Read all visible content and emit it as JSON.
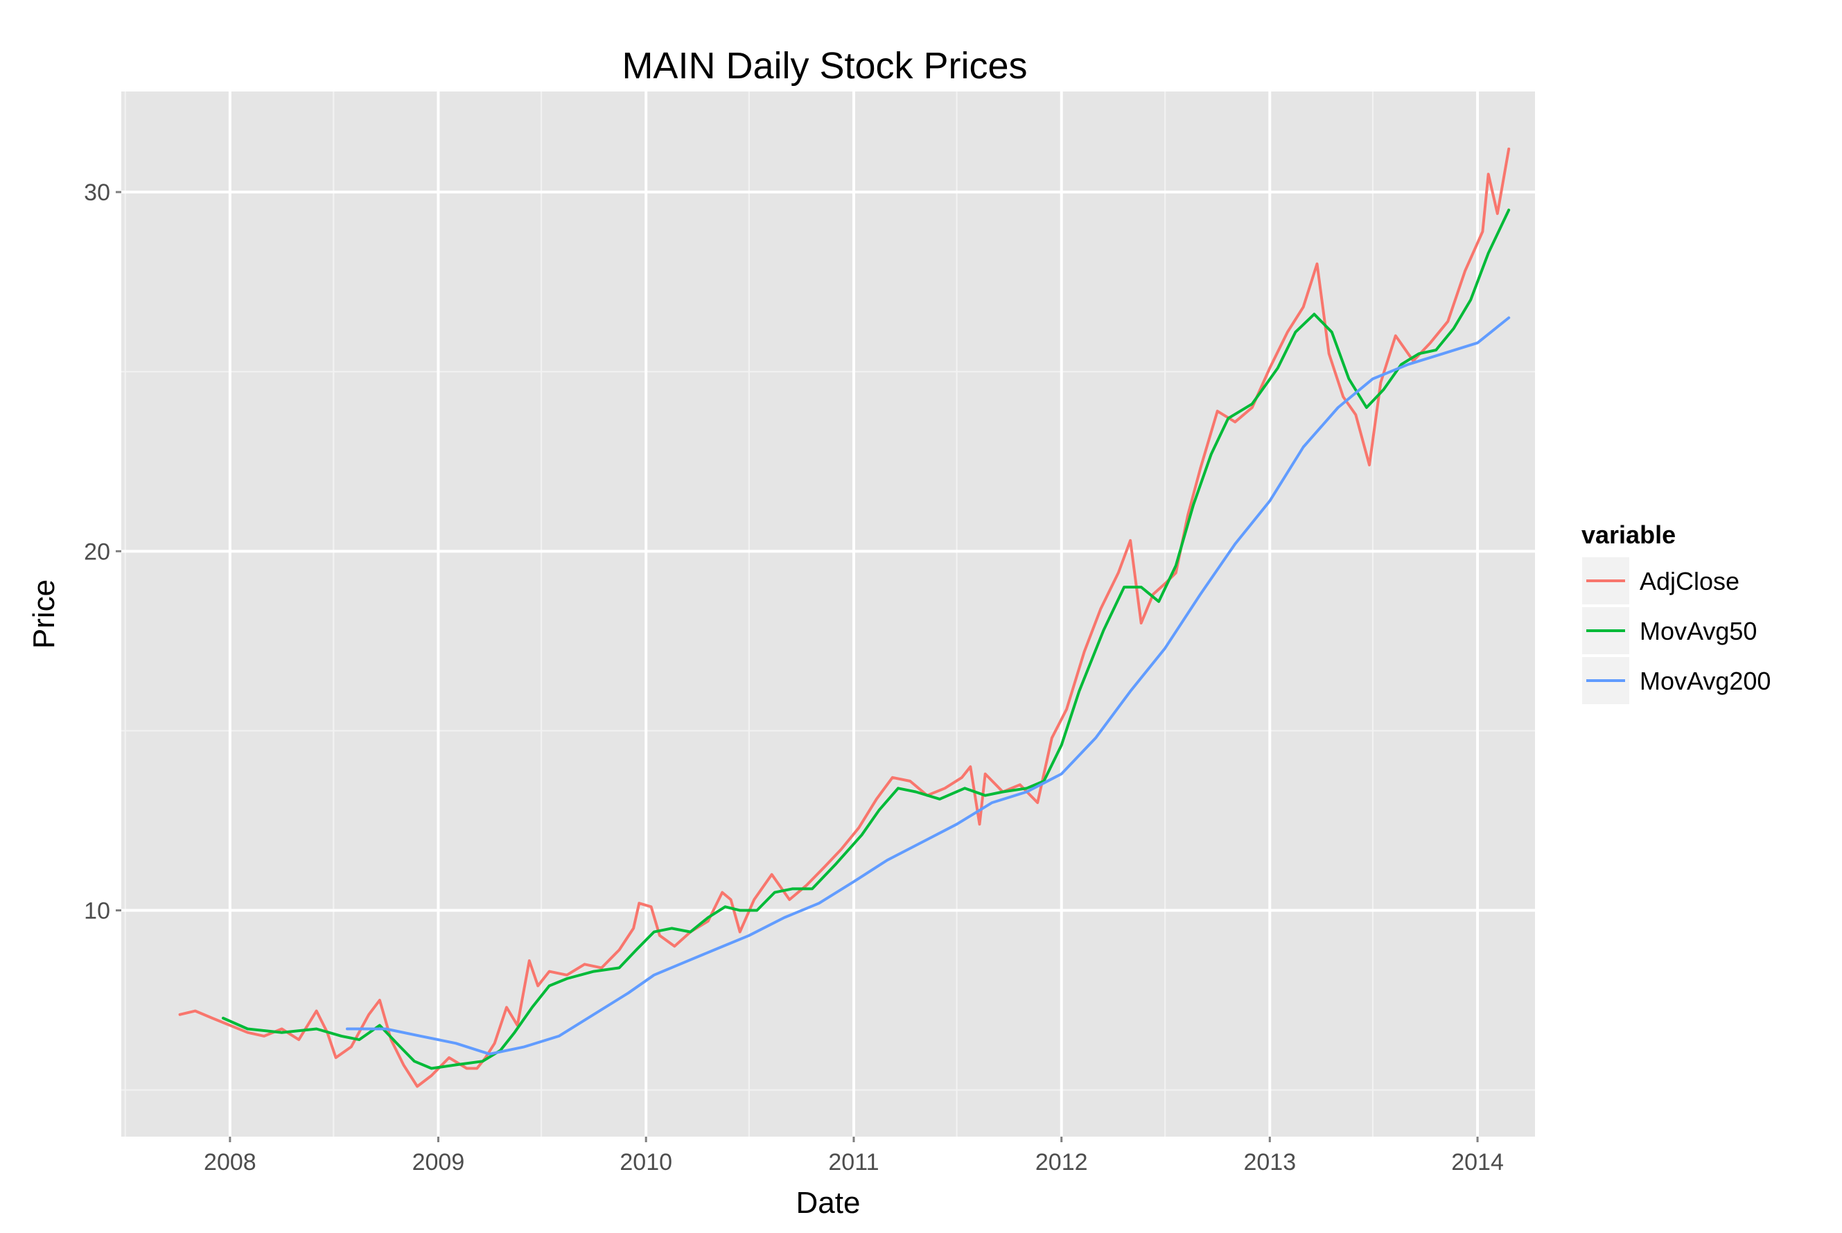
{
  "chart_data": {
    "type": "line",
    "title": "MAIN Daily Stock Prices",
    "xlabel": "Date",
    "ylabel": "Price",
    "xlim": [
      "2007-06-24",
      "2014-04-12"
    ],
    "ylim": [
      3.7,
      32.8
    ],
    "x_ticks": [
      "2008",
      "2009",
      "2010",
      "2011",
      "2012",
      "2013",
      "2014"
    ],
    "y_ticks": [
      "10",
      "20",
      "30"
    ],
    "y_tick_values": [
      10,
      20,
      30
    ],
    "grid": true,
    "legend": {
      "title": "variable",
      "position": "right"
    },
    "series": [
      {
        "name": "AdjClose",
        "color": "#F8766D",
        "points": [
          [
            "2007-10-05",
            7.1
          ],
          [
            "2007-11-01",
            7.2
          ],
          [
            "2007-12-01",
            7.0
          ],
          [
            "2008-01-01",
            6.8
          ],
          [
            "2008-02-01",
            6.6
          ],
          [
            "2008-03-01",
            6.5
          ],
          [
            "2008-04-01",
            6.7
          ],
          [
            "2008-05-01",
            6.4
          ],
          [
            "2008-06-01",
            7.2
          ],
          [
            "2008-06-20",
            6.6
          ],
          [
            "2008-07-05",
            5.9
          ],
          [
            "2008-08-01",
            6.2
          ],
          [
            "2008-09-01",
            7.1
          ],
          [
            "2008-09-20",
            7.5
          ],
          [
            "2008-10-10",
            6.4
          ],
          [
            "2008-11-01",
            5.7
          ],
          [
            "2008-11-25",
            5.1
          ],
          [
            "2008-12-20",
            5.4
          ],
          [
            "2009-01-20",
            5.9
          ],
          [
            "2009-02-20",
            5.6
          ],
          [
            "2009-03-10",
            5.6
          ],
          [
            "2009-03-25",
            5.9
          ],
          [
            "2009-04-10",
            6.3
          ],
          [
            "2009-05-01",
            7.3
          ],
          [
            "2009-05-20",
            6.8
          ],
          [
            "2009-06-10",
            8.6
          ],
          [
            "2009-06-25",
            7.9
          ],
          [
            "2009-07-15",
            8.3
          ],
          [
            "2009-08-15",
            8.2
          ],
          [
            "2009-09-15",
            8.5
          ],
          [
            "2009-10-15",
            8.4
          ],
          [
            "2009-11-15",
            8.9
          ],
          [
            "2009-12-10",
            9.5
          ],
          [
            "2009-12-20",
            10.2
          ],
          [
            "2010-01-10",
            10.1
          ],
          [
            "2010-01-25",
            9.3
          ],
          [
            "2010-02-20",
            9.0
          ],
          [
            "2010-03-20",
            9.4
          ],
          [
            "2010-04-20",
            9.7
          ],
          [
            "2010-05-15",
            10.5
          ],
          [
            "2010-05-30",
            10.3
          ],
          [
            "2010-06-15",
            9.4
          ],
          [
            "2010-07-10",
            10.3
          ],
          [
            "2010-08-10",
            11.0
          ],
          [
            "2010-09-10",
            10.3
          ],
          [
            "2010-10-10",
            10.7
          ],
          [
            "2010-11-10",
            11.2
          ],
          [
            "2010-12-10",
            11.7
          ],
          [
            "2011-01-10",
            12.3
          ],
          [
            "2011-02-10",
            13.1
          ],
          [
            "2011-03-10",
            13.7
          ],
          [
            "2011-04-10",
            13.6
          ],
          [
            "2011-05-10",
            13.2
          ],
          [
            "2011-06-10",
            13.4
          ],
          [
            "2011-07-10",
            13.7
          ],
          [
            "2011-07-25",
            14.0
          ],
          [
            "2011-08-10",
            12.4
          ],
          [
            "2011-08-20",
            13.8
          ],
          [
            "2011-09-20",
            13.3
          ],
          [
            "2011-10-20",
            13.5
          ],
          [
            "2011-11-20",
            13.0
          ],
          [
            "2011-12-15",
            14.8
          ],
          [
            "2012-01-10",
            15.6
          ],
          [
            "2012-02-10",
            17.2
          ],
          [
            "2012-03-10",
            18.4
          ],
          [
            "2012-04-10",
            19.4
          ],
          [
            "2012-05-01",
            20.3
          ],
          [
            "2012-05-20",
            18.0
          ],
          [
            "2012-06-10",
            18.8
          ],
          [
            "2012-07-01",
            19.1
          ],
          [
            "2012-07-20",
            19.4
          ],
          [
            "2012-08-10",
            21.0
          ],
          [
            "2012-09-01",
            22.3
          ],
          [
            "2012-10-01",
            23.9
          ],
          [
            "2012-11-01",
            23.6
          ],
          [
            "2012-12-01",
            24.0
          ],
          [
            "2013-01-01",
            25.1
          ],
          [
            "2013-02-01",
            26.1
          ],
          [
            "2013-03-01",
            26.8
          ],
          [
            "2013-03-25",
            28.0
          ],
          [
            "2013-04-15",
            25.5
          ],
          [
            "2013-05-10",
            24.3
          ],
          [
            "2013-06-01",
            23.8
          ],
          [
            "2013-06-25",
            22.4
          ],
          [
            "2013-07-15",
            24.7
          ],
          [
            "2013-08-10",
            26.0
          ],
          [
            "2013-09-10",
            25.3
          ],
          [
            "2013-10-10",
            25.8
          ],
          [
            "2013-11-10",
            26.4
          ],
          [
            "2013-12-10",
            27.8
          ],
          [
            "2014-01-10",
            28.9
          ],
          [
            "2014-01-20",
            30.5
          ],
          [
            "2014-02-05",
            29.4
          ],
          [
            "2014-02-25",
            31.2
          ]
        ]
      },
      {
        "name": "MovAvg50",
        "color": "#00BA38",
        "points": [
          [
            "2007-12-20",
            7.0
          ],
          [
            "2008-02-01",
            6.7
          ],
          [
            "2008-04-01",
            6.6
          ],
          [
            "2008-06-01",
            6.7
          ],
          [
            "2008-07-15",
            6.5
          ],
          [
            "2008-08-15",
            6.4
          ],
          [
            "2008-09-20",
            6.8
          ],
          [
            "2008-10-20",
            6.3
          ],
          [
            "2008-11-20",
            5.8
          ],
          [
            "2008-12-20",
            5.6
          ],
          [
            "2009-02-01",
            5.7
          ],
          [
            "2009-03-20",
            5.8
          ],
          [
            "2009-04-20",
            6.1
          ],
          [
            "2009-05-15",
            6.6
          ],
          [
            "2009-06-15",
            7.3
          ],
          [
            "2009-07-15",
            7.9
          ],
          [
            "2009-08-15",
            8.1
          ],
          [
            "2009-10-01",
            8.3
          ],
          [
            "2009-11-15",
            8.4
          ],
          [
            "2009-12-15",
            8.9
          ],
          [
            "2010-01-15",
            9.4
          ],
          [
            "2010-02-15",
            9.5
          ],
          [
            "2010-03-20",
            9.4
          ],
          [
            "2010-04-20",
            9.8
          ],
          [
            "2010-05-20",
            10.1
          ],
          [
            "2010-06-15",
            10.0
          ],
          [
            "2010-07-15",
            10.0
          ],
          [
            "2010-08-15",
            10.5
          ],
          [
            "2010-09-15",
            10.6
          ],
          [
            "2010-10-20",
            10.6
          ],
          [
            "2010-12-01",
            11.3
          ],
          [
            "2011-01-15",
            12.1
          ],
          [
            "2011-02-15",
            12.8
          ],
          [
            "2011-03-20",
            13.4
          ],
          [
            "2011-04-20",
            13.3
          ],
          [
            "2011-06-01",
            13.1
          ],
          [
            "2011-07-15",
            13.4
          ],
          [
            "2011-08-20",
            13.2
          ],
          [
            "2011-09-20",
            13.3
          ],
          [
            "2011-11-01",
            13.4
          ],
          [
            "2011-12-01",
            13.6
          ],
          [
            "2012-01-01",
            14.6
          ],
          [
            "2012-02-01",
            16.1
          ],
          [
            "2012-03-15",
            17.8
          ],
          [
            "2012-04-20",
            19.0
          ],
          [
            "2012-05-20",
            19.0
          ],
          [
            "2012-06-20",
            18.6
          ],
          [
            "2012-07-20",
            19.6
          ],
          [
            "2012-08-20",
            21.3
          ],
          [
            "2012-09-20",
            22.7
          ],
          [
            "2012-10-20",
            23.7
          ],
          [
            "2012-12-01",
            24.1
          ],
          [
            "2013-01-15",
            25.1
          ],
          [
            "2013-02-15",
            26.1
          ],
          [
            "2013-03-20",
            26.6
          ],
          [
            "2013-04-20",
            26.1
          ],
          [
            "2013-05-20",
            24.8
          ],
          [
            "2013-06-20",
            24.0
          ],
          [
            "2013-07-20",
            24.5
          ],
          [
            "2013-08-20",
            25.2
          ],
          [
            "2013-09-20",
            25.5
          ],
          [
            "2013-10-20",
            25.6
          ],
          [
            "2013-11-20",
            26.2
          ],
          [
            "2013-12-20",
            27.0
          ],
          [
            "2014-01-20",
            28.3
          ],
          [
            "2014-02-25",
            29.5
          ]
        ]
      },
      {
        "name": "MovAvg200",
        "color": "#619CFF",
        "points": [
          [
            "2008-07-25",
            6.7
          ],
          [
            "2008-10-01",
            6.7
          ],
          [
            "2008-12-01",
            6.5
          ],
          [
            "2009-02-01",
            6.3
          ],
          [
            "2009-04-01",
            6.0
          ],
          [
            "2009-06-01",
            6.2
          ],
          [
            "2009-08-01",
            6.5
          ],
          [
            "2009-10-01",
            7.1
          ],
          [
            "2009-12-01",
            7.7
          ],
          [
            "2010-01-15",
            8.2
          ],
          [
            "2010-03-01",
            8.5
          ],
          [
            "2010-05-01",
            8.9
          ],
          [
            "2010-07-01",
            9.3
          ],
          [
            "2010-09-01",
            9.8
          ],
          [
            "2010-11-01",
            10.2
          ],
          [
            "2011-01-01",
            10.8
          ],
          [
            "2011-03-01",
            11.4
          ],
          [
            "2011-05-01",
            11.9
          ],
          [
            "2011-07-01",
            12.4
          ],
          [
            "2011-09-01",
            13.0
          ],
          [
            "2011-11-01",
            13.3
          ],
          [
            "2012-01-01",
            13.8
          ],
          [
            "2012-03-01",
            14.8
          ],
          [
            "2012-05-01",
            16.1
          ],
          [
            "2012-07-01",
            17.3
          ],
          [
            "2012-09-01",
            18.8
          ],
          [
            "2012-11-01",
            20.2
          ],
          [
            "2013-01-01",
            21.4
          ],
          [
            "2013-03-01",
            22.9
          ],
          [
            "2013-05-01",
            24.0
          ],
          [
            "2013-07-01",
            24.8
          ],
          [
            "2013-09-01",
            25.2
          ],
          [
            "2013-11-01",
            25.5
          ],
          [
            "2014-01-01",
            25.8
          ],
          [
            "2014-02-25",
            26.5
          ]
        ]
      }
    ]
  }
}
